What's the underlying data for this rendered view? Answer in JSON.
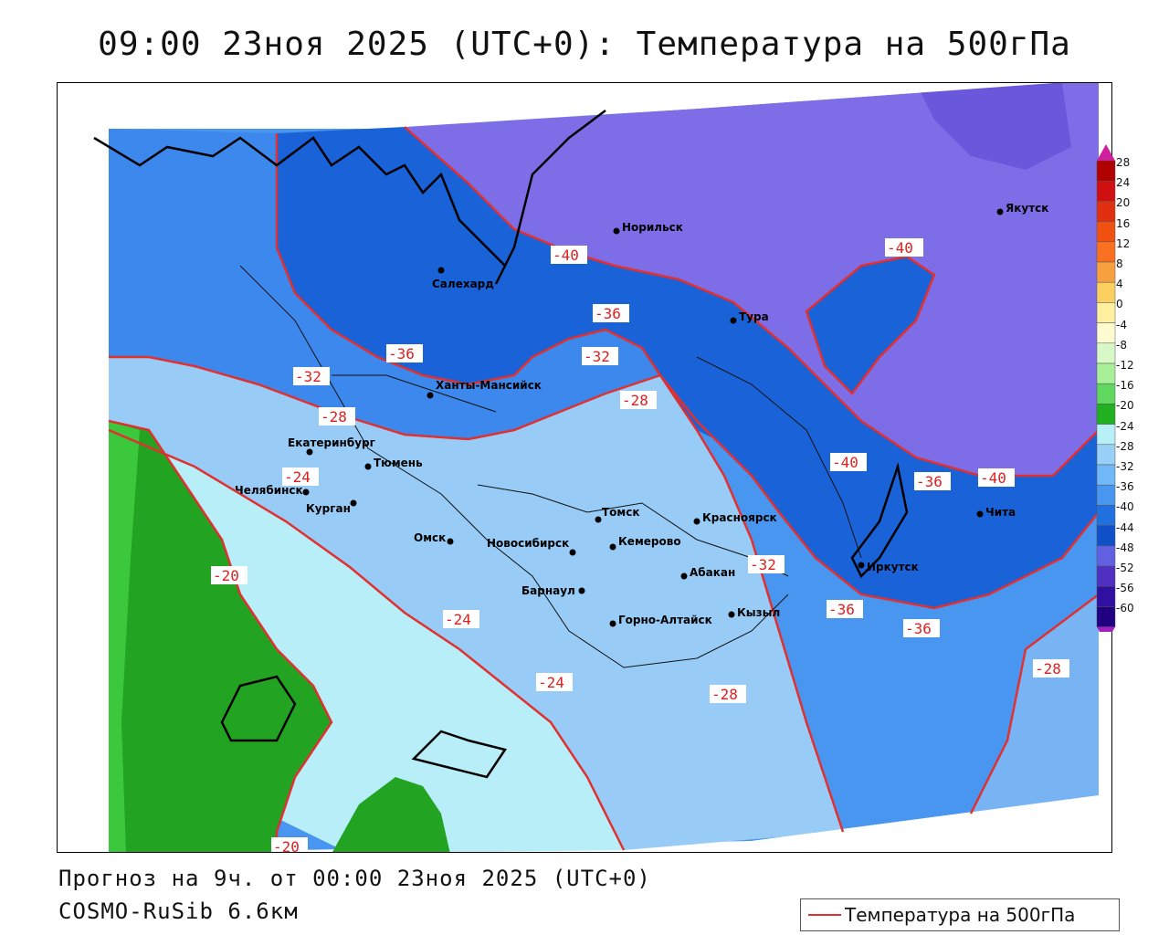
{
  "title": "09:00 23ноя 2025 (UTC+0): Температура на 500гПа",
  "footer": {
    "forecast": "Прогноз на 9ч. от 00:00 23ноя 2025 (UTC+0)",
    "model": "COSMO-RuSib 6.6км"
  },
  "legend": {
    "label": "Температура на 500гПа",
    "line_color": "#e03030"
  },
  "colorbar": {
    "levels": [
      "28",
      "24",
      "20",
      "16",
      "12",
      "8",
      "4",
      "0",
      "-4",
      "-8",
      "-12",
      "-16",
      "-20",
      "-24",
      "-28",
      "-32",
      "-36",
      "-40",
      "-44",
      "-48",
      "-52",
      "-56",
      "-60"
    ],
    "colors": [
      "#b00000",
      "#d01010",
      "#e03010",
      "#f05010",
      "#f87020",
      "#f8a040",
      "#fcd060",
      "#fff0a0",
      "#fffbd0",
      "#d8f8c8",
      "#a8f098",
      "#60d860",
      "#20b020",
      "#b8f0f8",
      "#98d0f8",
      "#70b8f8",
      "#4896f0",
      "#2070e0",
      "#1050c8",
      "#6060e0",
      "#5030c0",
      "#3010a0",
      "#200080"
    ],
    "top_arrow_color": "#d020a0",
    "bottom_arrow_color": "#a020c0"
  },
  "cities": [
    {
      "name": "Якутск"
    },
    {
      "name": "Норильск"
    },
    {
      "name": "Салехард"
    },
    {
      "name": "Тура"
    },
    {
      "name": "Ханты-Мансийск"
    },
    {
      "name": "Екатеринбург"
    },
    {
      "name": "Тюмень"
    },
    {
      "name": "Челябинск"
    },
    {
      "name": "Курган"
    },
    {
      "name": "Омск"
    },
    {
      "name": "Новосибирск"
    },
    {
      "name": "Томск"
    },
    {
      "name": "Кемерово"
    },
    {
      "name": "Красноярск"
    },
    {
      "name": "Барнаул"
    },
    {
      "name": "Абакан"
    },
    {
      "name": "Кызыл"
    },
    {
      "name": "Горно-Алтайск"
    },
    {
      "name": "Иркутск"
    },
    {
      "name": "Чита"
    }
  ],
  "contour_labels": [
    {
      "text": "-40"
    },
    {
      "text": "-40"
    },
    {
      "text": "-36"
    },
    {
      "text": "-32"
    },
    {
      "text": "-36"
    },
    {
      "text": "-32"
    },
    {
      "text": "-28"
    },
    {
      "text": "-28"
    },
    {
      "text": "-24"
    },
    {
      "text": "-40"
    },
    {
      "text": "-36"
    },
    {
      "text": "-40"
    },
    {
      "text": "-20"
    },
    {
      "text": "-24"
    },
    {
      "text": "-32"
    },
    {
      "text": "-36"
    },
    {
      "text": "-36"
    },
    {
      "text": "-24"
    },
    {
      "text": "-28"
    },
    {
      "text": "-28"
    },
    {
      "text": "-20"
    }
  ]
}
